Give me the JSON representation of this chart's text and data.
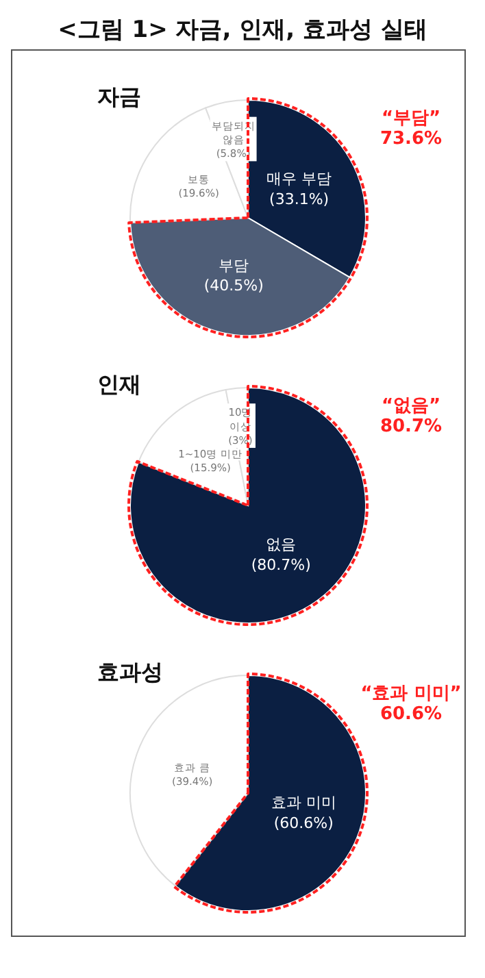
{
  "chart_data": [
    {
      "type": "pie",
      "title": "<그림 1> 자금, 인재, 효과성 실태",
      "subtitle": "자금",
      "categories": [
        "매우 부담",
        "부담",
        "보통",
        "부담되지 않음"
      ],
      "values": [
        33.1,
        40.5,
        19.6,
        5.8
      ],
      "value_labels": [
        "(33.1%)",
        "(40.5%)",
        "(19.6%)",
        "(5.8%)"
      ],
      "colors": [
        "#0b1f42",
        "#4e5d77",
        "#ffffff",
        "#ffffff"
      ],
      "annotations": [
        "“부담”\n73.6%"
      ],
      "legend": false
    },
    {
      "type": "pie",
      "subtitle": "인재",
      "categories": [
        "없음",
        "1~10명 미만",
        "10명 이상"
      ],
      "values": [
        80.7,
        15.9,
        3
      ],
      "value_labels": [
        "(80.7%)",
        "(15.9%)",
        "(3%)"
      ],
      "colors": [
        "#0b1f42",
        "#ffffff",
        "#ffffff"
      ],
      "annotations": [
        "“없음”\n80.7%"
      ],
      "legend": false
    },
    {
      "type": "pie",
      "subtitle": "효과성",
      "categories": [
        "효과 미미",
        "효과 큼"
      ],
      "values": [
        60.6,
        39.4
      ],
      "value_labels": [
        "(60.6%)",
        "(39.4%)"
      ],
      "colors": [
        "#0b1f42",
        "#ffffff"
      ],
      "annotations": [
        "“효과 미미”\n60.6%"
      ],
      "legend": false
    }
  ]
}
